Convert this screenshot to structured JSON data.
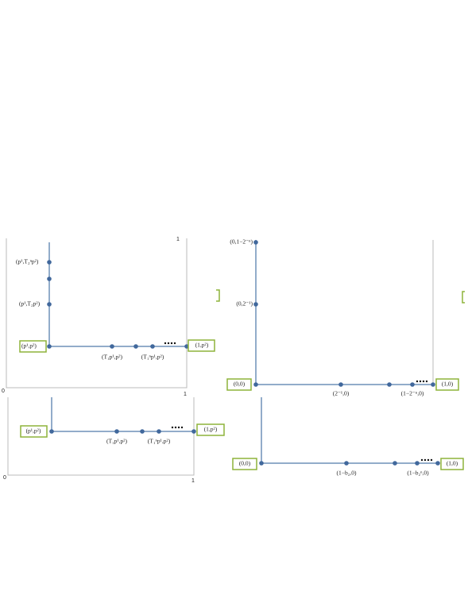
{
  "top_left": {
    "axis_top": "1",
    "axis_origin": "0",
    "axis_right": "1",
    "labels": [
      "(p¹,T₂ⁿp²)",
      "(p¹,T₂p²)",
      "(p¹,p²)",
      "(T₁p¹,p²)",
      "(T₁ⁿp¹,p²)",
      "(1,p²)"
    ]
  },
  "top_right": {
    "labels": [
      "(0,1−2⁻ⁿ)",
      "(0,2⁻¹)",
      "(0,0)",
      "(2⁻¹,0)",
      "(1−2⁻ⁿ,0)",
      "(1,0)"
    ]
  },
  "bottom_left": {
    "axis_origin": "0",
    "axis_right": "1",
    "labels": [
      "(p¹,p²)",
      "(T₁p¹,p²)",
      "(T₁ⁿp¹,p²)",
      "(1,p²)"
    ]
  },
  "bottom_right": {
    "labels": [
      "(0,0)",
      "(1−b₂,0)",
      "(1−b₂ⁿ,0)",
      "(1,0)"
    ]
  }
}
